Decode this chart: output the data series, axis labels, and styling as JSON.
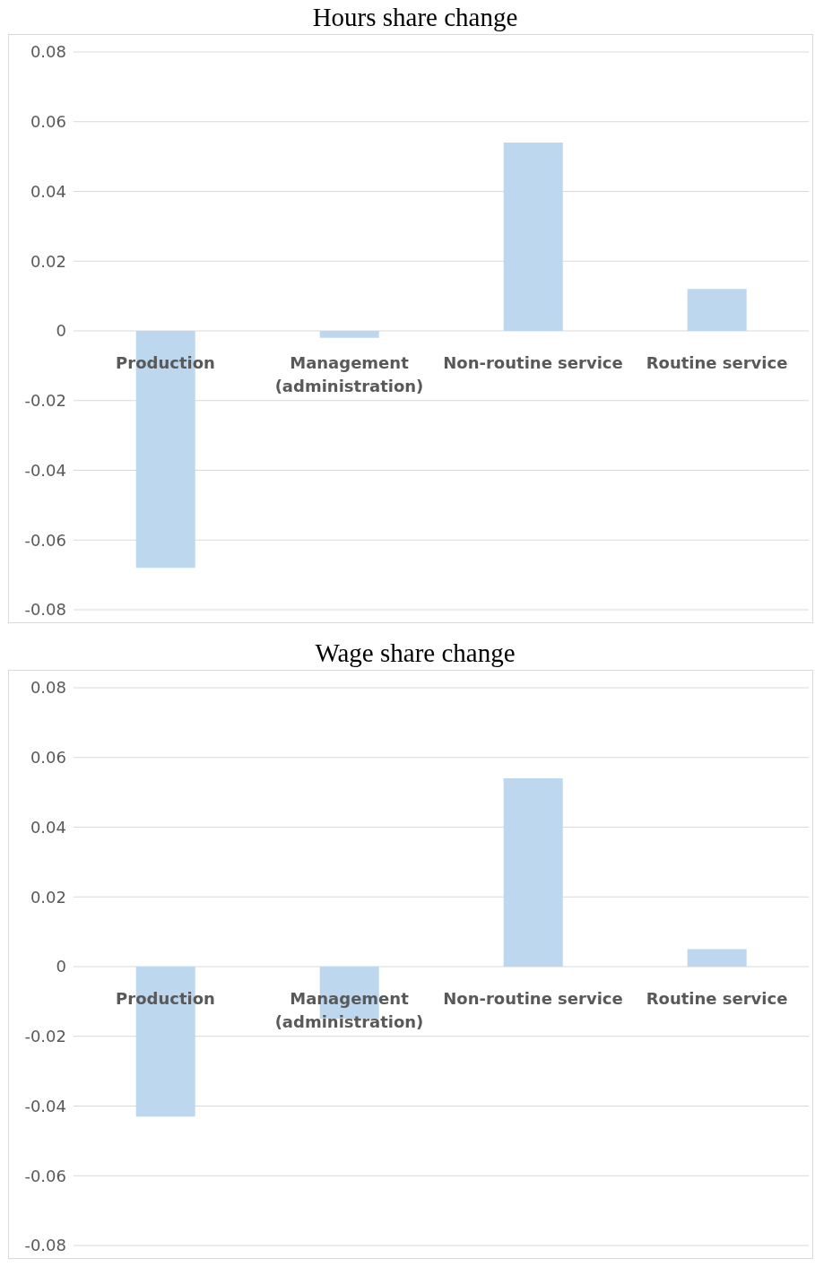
{
  "chart_data": [
    {
      "type": "bar",
      "title": "Hours share change",
      "categories": [
        "Production",
        "Management (administration)",
        "Non-routine service",
        "Routine service"
      ],
      "values": [
        -0.068,
        -0.002,
        0.054,
        0.012
      ],
      "color": "#bdd7ee",
      "ylim": [
        -0.08,
        0.08
      ],
      "yticks": [
        -0.08,
        -0.06,
        -0.04,
        -0.02,
        0,
        0.02,
        0.04,
        0.06,
        0.08
      ],
      "grid": "y",
      "legend": false
    },
    {
      "type": "bar",
      "title": "Wage share change",
      "categories": [
        "Production",
        "Management (administration)",
        "Non-routine service",
        "Routine service"
      ],
      "values": [
        -0.043,
        -0.015,
        0.054,
        0.005
      ],
      "color": "#bdd7ee",
      "ylim": [
        -0.08,
        0.08
      ],
      "yticks": [
        -0.08,
        -0.06,
        -0.04,
        -0.02,
        0,
        0.02,
        0.04,
        0.06,
        0.08
      ],
      "grid": "y",
      "legend": false
    }
  ]
}
